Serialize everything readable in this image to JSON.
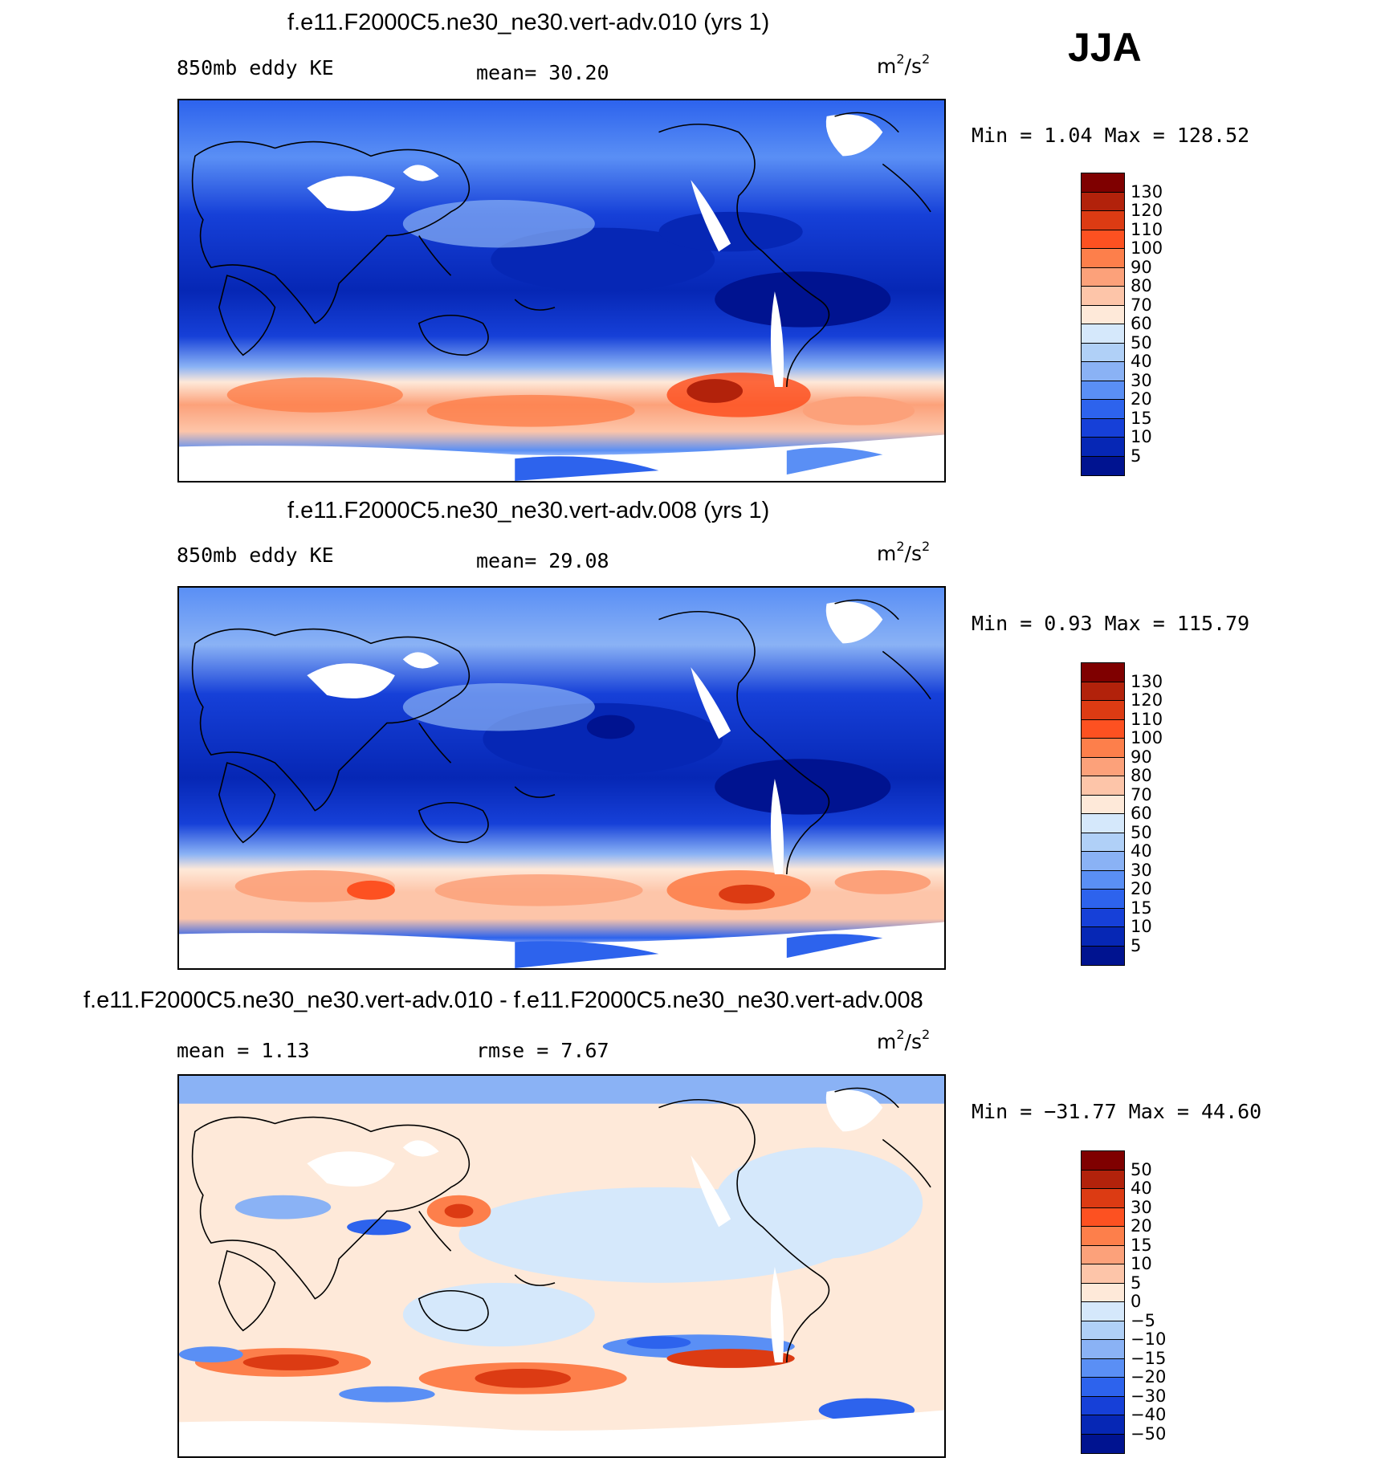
{
  "season": "JJA",
  "panels": [
    {
      "title": "f.e11.F2000C5.ne30_ne30.vert-adv.010 (yrs 1)",
      "left_label": "850mb eddy KE",
      "stat_text": "mean=   30.20",
      "units": {
        "base": "m",
        "exp1": "2",
        "mid": "/s",
        "exp2": "2"
      },
      "minmax": "Min =    1.04 Max =  128.52",
      "colorbar_levels": [
        "130",
        "120",
        "110",
        "100",
        "90",
        "80",
        "70",
        "60",
        "50",
        "40",
        "30",
        "20",
        "15",
        "10",
        "5"
      ]
    },
    {
      "title": "f.e11.F2000C5.ne30_ne30.vert-adv.008 (yrs 1)",
      "left_label": "850mb eddy KE",
      "stat_text": "mean=   29.08",
      "units": {
        "base": "m",
        "exp1": "2",
        "mid": "/s",
        "exp2": "2"
      },
      "minmax": "Min =    0.93 Max =  115.79",
      "colorbar_levels": [
        "130",
        "120",
        "110",
        "100",
        "90",
        "80",
        "70",
        "60",
        "50",
        "40",
        "30",
        "20",
        "15",
        "10",
        "5"
      ]
    },
    {
      "title": "f.e11.F2000C5.ne30_ne30.vert-adv.010 - f.e11.F2000C5.ne30_ne30.vert-adv.008",
      "left_label": "mean =     1.13",
      "stat_text": "rmse =     7.67",
      "units": {
        "base": "m",
        "exp1": "2",
        "mid": "/s",
        "exp2": "2"
      },
      "minmax": "Min = −31.77 Max =   44.60",
      "colorbar_levels": [
        "50",
        "40",
        "30",
        "20",
        "15",
        "10",
        "5",
        "0",
        "−5",
        "−10",
        "−15",
        "−20",
        "−30",
        "−40",
        "−50"
      ]
    }
  ],
  "colors": {
    "abs_scale": [
      "#7f0000",
      "#b2220b",
      "#dc3b13",
      "#fd5121",
      "#fd7f4b",
      "#fca17a",
      "#fdc5a9",
      "#fee9d9",
      "#d5e8fb",
      "#b0d0f7",
      "#8ab2f5",
      "#5a8ff5",
      "#2d63ed",
      "#1640d8",
      "#0627b5",
      "#001390"
    ],
    "diff_scale": [
      "#7f0000",
      "#b2220b",
      "#dc3b13",
      "#fd5121",
      "#fd7f4b",
      "#fca17a",
      "#fdc5a9",
      "#fee9d9",
      "#d5e8fb",
      "#b0d0f7",
      "#8ab2f5",
      "#5a8ff5",
      "#2d63ed",
      "#1640d8",
      "#0627b5",
      "#001390"
    ]
  },
  "chart_data": [
    {
      "type": "heatmap",
      "title": "f.e11.F2000C5.ne30_ne30.vert-adv.010 (yrs 1)",
      "variable": "850mb eddy KE",
      "units": "m^2/s^2",
      "mean": 30.2,
      "min": 1.04,
      "max": 128.52,
      "contour_levels": [
        5,
        10,
        15,
        20,
        30,
        40,
        50,
        60,
        70,
        80,
        90,
        100,
        110,
        120,
        130
      ]
    },
    {
      "type": "heatmap",
      "title": "f.e11.F2000C5.ne30_ne30.vert-adv.008 (yrs 1)",
      "variable": "850mb eddy KE",
      "units": "m^2/s^2",
      "mean": 29.08,
      "min": 0.93,
      "max": 115.79,
      "contour_levels": [
        5,
        10,
        15,
        20,
        30,
        40,
        50,
        60,
        70,
        80,
        90,
        100,
        110,
        120,
        130
      ]
    },
    {
      "type": "heatmap",
      "title": "f.e11.F2000C5.ne30_ne30.vert-adv.010 - f.e11.F2000C5.ne30_ne30.vert-adv.008",
      "units": "m^2/s^2",
      "mean": 1.13,
      "rmse": 7.67,
      "min": -31.77,
      "max": 44.6,
      "contour_levels": [
        -50,
        -40,
        -30,
        -20,
        -15,
        -10,
        -5,
        0,
        5,
        10,
        15,
        20,
        30,
        40,
        50
      ]
    }
  ]
}
